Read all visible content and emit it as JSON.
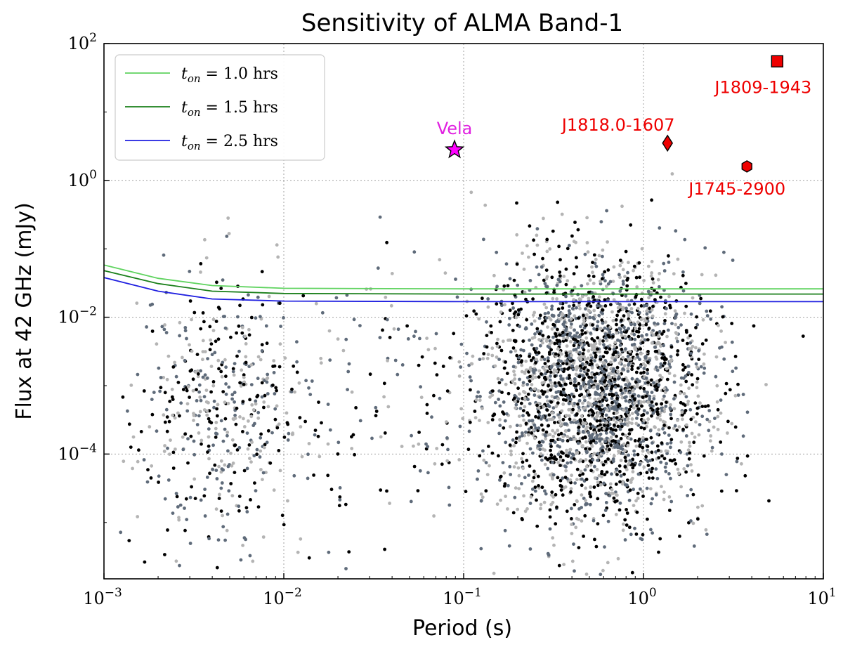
{
  "chart_data": {
    "type": "scatter",
    "title": "Sensitivity of ALMA Band-1",
    "xlabel": "Period (s)",
    "ylabel": "Flux at 42 GHz (mJy)",
    "xscale": "log",
    "yscale": "log",
    "xlim": [
      0.001,
      10
    ],
    "ylim": [
      1.5e-06,
      100
    ],
    "grid": true,
    "x_ticks": [
      {
        "value": 0.001,
        "base": "10",
        "exp": "−3"
      },
      {
        "value": 0.01,
        "base": "10",
        "exp": "−2"
      },
      {
        "value": 0.1,
        "base": "10",
        "exp": "−1"
      },
      {
        "value": 1,
        "base": "10",
        "exp": "0"
      },
      {
        "value": 10,
        "base": "10",
        "exp": "1"
      }
    ],
    "y_ticks": [
      {
        "value": 0.0001,
        "base": "10",
        "exp": "−4"
      },
      {
        "value": 0.01,
        "base": "10",
        "exp": "−2"
      },
      {
        "value": 1,
        "base": "10",
        "exp": "0"
      },
      {
        "value": 100,
        "base": "10",
        "exp": "2"
      }
    ],
    "legend_position": "top-left",
    "series": [
      {
        "name": "t_on = 1.0 hrs",
        "label_var": "t",
        "label_sub": "on",
        "label_rest": " = 1.0 hrs",
        "color": "#5fd35f",
        "kind": "line",
        "x": [
          0.001,
          0.002,
          0.004,
          0.01,
          0.1,
          1,
          10
        ],
        "y": [
          0.058,
          0.037,
          0.029,
          0.0265,
          0.026,
          0.026,
          0.026
        ]
      },
      {
        "name": "t_on = 1.5 hrs",
        "label_var": "t",
        "label_sub": "on",
        "label_rest": " = 1.5 hrs",
        "color": "#1a7f1a",
        "kind": "line",
        "x": [
          0.001,
          0.002,
          0.004,
          0.01,
          0.1,
          1,
          10
        ],
        "y": [
          0.048,
          0.031,
          0.024,
          0.0222,
          0.0218,
          0.0218,
          0.0218
        ]
      },
      {
        "name": "t_on = 2.5 hrs",
        "label_var": "t",
        "label_sub": "on",
        "label_rest": " = 2.5 hrs",
        "color": "#1f1fe0",
        "kind": "line",
        "x": [
          0.001,
          0.002,
          0.004,
          0.01,
          0.1,
          1,
          10
        ],
        "y": [
          0.038,
          0.024,
          0.0185,
          0.0172,
          0.0169,
          0.0169,
          0.0169
        ]
      }
    ],
    "highlighted": [
      {
        "name": "Vela",
        "x": 0.089,
        "y": 2.8,
        "marker": "star",
        "color": "#ff00ff",
        "label_color": "#e020e0",
        "label_pos": "above"
      },
      {
        "name": "J1818.0-1607",
        "x": 1.36,
        "y": 3.5,
        "marker": "diamond",
        "color": "#ee0000",
        "label_color": "#ee0000",
        "label_pos": "above"
      },
      {
        "name": "J1745-2900",
        "x": 3.76,
        "y": 1.6,
        "marker": "hexagon",
        "color": "#ee0000",
        "label_color": "#ee0000",
        "label_pos": "below"
      },
      {
        "name": "J1809-1943",
        "x": 5.54,
        "y": 55,
        "marker": "square",
        "color": "#ee0000",
        "label_color": "#ee0000",
        "label_pos": "below"
      }
    ],
    "population": {
      "description": "radio pulsar population",
      "colors": [
        "#000000",
        "#5f6b7a",
        "#b4b4b4"
      ],
      "clusters": [
        {
          "name": "millisecond-pulsars",
          "x_center": 0.0042,
          "x_sigma_dex": 0.23,
          "y_center": 0.00045,
          "y_sigma_dex": 1.05,
          "count": 520
        },
        {
          "name": "normal-pulsars",
          "x_center": 0.55,
          "x_sigma_dex": 0.3,
          "y_center": 0.0009,
          "y_sigma_dex": 0.95,
          "count": 2900
        },
        {
          "name": "intermediate",
          "x_center": 0.05,
          "x_sigma_dex": 0.35,
          "y_center": 0.0005,
          "y_sigma_dex": 1.1,
          "count": 160
        }
      ]
    }
  }
}
